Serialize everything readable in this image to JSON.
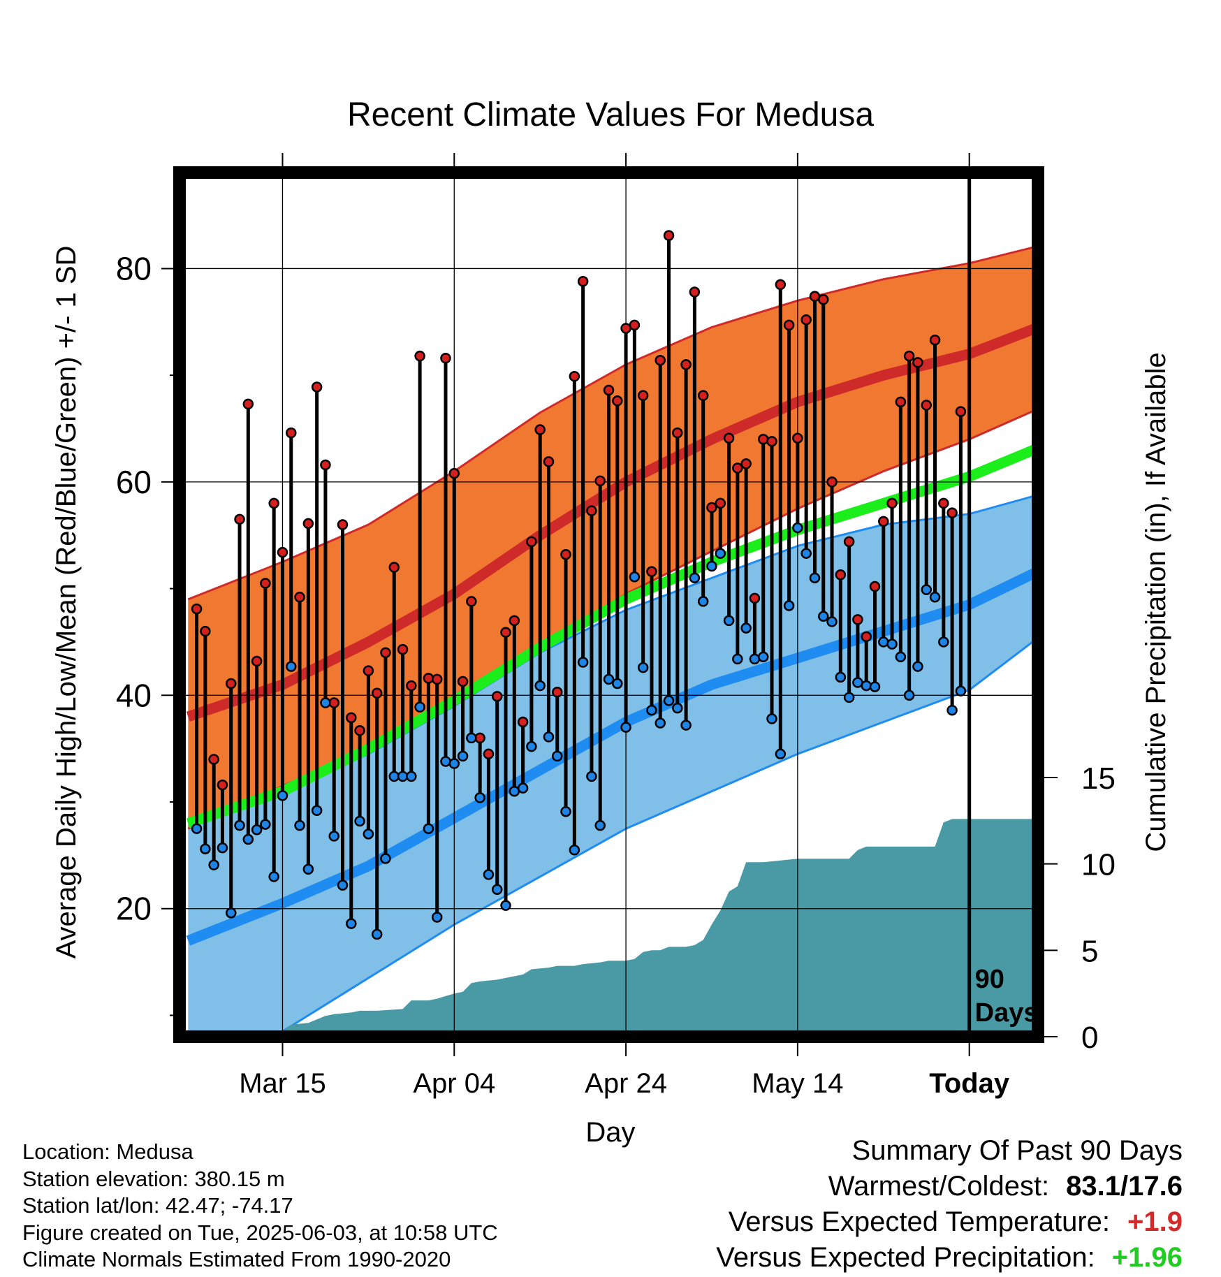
{
  "chart_data": {
    "type": "line",
    "title": "Recent Climate Values For Medusa",
    "xlabel": "Day",
    "ylabel": "Average Daily High/Low/Mean (Red/Blue/Green) +/- 1 SD",
    "y2label": "Cumulative Precipitation (in), If Available",
    "x_range_days": [
      -92,
      8
    ],
    "x_reference": "Today",
    "x_ticks": [
      {
        "day": -80,
        "label": "Mar 15"
      },
      {
        "day": -60,
        "label": "Apr 04"
      },
      {
        "day": -40,
        "label": "Apr 24"
      },
      {
        "day": -20,
        "label": "May 14"
      },
      {
        "day": 0,
        "label": "Today"
      }
    ],
    "ylim": [
      8,
      89
    ],
    "yticks": [
      20,
      40,
      60,
      80
    ],
    "y2lim": [
      0,
      58
    ],
    "y2ticks": [
      0,
      5,
      10,
      15
    ],
    "today_marker_label": "90 Days",
    "grid": true,
    "normals": {
      "days": [
        -91,
        -80,
        -70,
        -60,
        -50,
        -40,
        -30,
        -20,
        -10,
        0,
        9
      ],
      "high_mean": [
        38.0,
        41.0,
        45.0,
        49.5,
        55.0,
        60.0,
        64.0,
        67.5,
        70.0,
        72.0,
        74.8
      ],
      "high_upper": [
        49.0,
        52.5,
        56.0,
        61.0,
        66.5,
        71.0,
        74.5,
        77.0,
        79.0,
        80.5,
        82.3
      ],
      "high_lower": [
        27.5,
        31.5,
        35.0,
        39.5,
        44.5,
        49.5,
        53.5,
        57.5,
        61.0,
        64.0,
        67.2
      ],
      "mean": [
        28.0,
        31.0,
        35.0,
        39.5,
        44.5,
        49.0,
        52.5,
        55.5,
        58.0,
        60.5,
        63.5
      ],
      "low_mean": [
        17.0,
        20.5,
        24.0,
        28.5,
        33.0,
        37.5,
        41.0,
        43.5,
        46.0,
        48.5,
        52.0
      ],
      "low_upper": [
        28.5,
        31.0,
        34.5,
        39.0,
        44.0,
        48.0,
        51.0,
        54.0,
        56.0,
        57.0,
        59.0
      ],
      "low_lower": [
        5.0,
        8.5,
        13.5,
        18.5,
        23.0,
        27.5,
        31.0,
        34.5,
        37.5,
        40.5,
        46.0
      ]
    },
    "series": [
      {
        "name": "High",
        "days": [
          -90,
          -89,
          -88,
          -87,
          -86,
          -85,
          -84,
          -83,
          -82,
          -81,
          -80,
          -79,
          -78,
          -77,
          -76,
          -75,
          -74,
          -73,
          -72,
          -71,
          -70,
          -69,
          -68,
          -67,
          -66,
          -65,
          -64,
          -63,
          -62,
          -61,
          -60,
          -59,
          -58,
          -57,
          -56,
          -55,
          -54,
          -53,
          -52,
          -51,
          -50,
          -49,
          -48,
          -47,
          -46,
          -45,
          -44,
          -43,
          -42,
          -41,
          -40,
          -39,
          -38,
          -37,
          -36,
          -35,
          -34,
          -33,
          -32,
          -31,
          -30,
          -29,
          -28,
          -27,
          -26,
          -25,
          -24,
          -23,
          -22,
          -21,
          -20,
          -19,
          -18,
          -17,
          -16,
          -15,
          -14,
          -13,
          -12,
          -11,
          -10,
          -9,
          -8,
          -7,
          -6,
          -5,
          -4,
          -3,
          -2,
          -1
        ],
        "values": [
          48.1,
          46.0,
          34.0,
          31.6,
          41.1,
          56.5,
          67.3,
          43.2,
          50.5,
          58.0,
          53.4,
          64.6,
          49.2,
          56.1,
          68.9,
          61.6,
          39.3,
          56.0,
          37.9,
          36.7,
          42.3,
          40.2,
          44.0,
          52.0,
          44.3,
          40.9,
          71.8,
          41.6,
          41.5,
          71.6,
          60.8,
          41.3,
          48.8,
          36.0,
          34.5,
          39.9,
          45.9,
          47.0,
          37.5,
          54.4,
          64.9,
          61.9,
          40.3,
          53.2,
          69.9,
          78.8,
          57.3,
          60.1,
          68.6,
          67.6,
          74.4,
          74.7,
          68.1,
          51.6,
          71.4,
          83.1,
          64.6,
          71.0,
          77.8,
          68.1,
          57.6,
          58.0,
          64.1,
          61.3,
          61.7,
          49.1,
          64.0,
          63.8,
          78.5,
          74.7,
          64.1,
          75.2,
          77.4,
          77.1,
          60.0,
          51.3,
          54.4,
          47.1,
          45.5,
          50.2,
          56.3,
          58.0,
          67.5,
          71.8,
          71.2,
          67.2,
          73.3,
          58.0,
          57.1,
          66.6
        ]
      },
      {
        "name": "Low",
        "days": [
          -90,
          -89,
          -88,
          -87,
          -86,
          -85,
          -84,
          -83,
          -82,
          -81,
          -80,
          -79,
          -78,
          -77,
          -76,
          -75,
          -74,
          -73,
          -72,
          -71,
          -70,
          -69,
          -68,
          -67,
          -66,
          -65,
          -64,
          -63,
          -62,
          -61,
          -60,
          -59,
          -58,
          -57,
          -56,
          -55,
          -54,
          -53,
          -52,
          -51,
          -50,
          -49,
          -48,
          -47,
          -46,
          -45,
          -44,
          -43,
          -42,
          -41,
          -40,
          -39,
          -38,
          -37,
          -36,
          -35,
          -34,
          -33,
          -32,
          -31,
          -30,
          -29,
          -28,
          -27,
          -26,
          -25,
          -24,
          -23,
          -22,
          -21,
          -20,
          -19,
          -18,
          -17,
          -16,
          -15,
          -14,
          -13,
          -12,
          -11,
          -10,
          -9,
          -8,
          -7,
          -6,
          -5,
          -4,
          -3,
          -2,
          -1
        ],
        "values": [
          27.5,
          25.6,
          24.1,
          25.7,
          19.6,
          27.8,
          26.5,
          27.4,
          27.9,
          23.0,
          30.6,
          42.7,
          27.8,
          23.7,
          29.2,
          39.3,
          26.8,
          22.2,
          18.6,
          28.2,
          27.0,
          17.6,
          24.7,
          32.4,
          32.4,
          32.4,
          38.9,
          27.5,
          19.2,
          33.8,
          33.6,
          34.3,
          36.0,
          30.4,
          23.2,
          21.8,
          20.3,
          31.0,
          31.3,
          35.2,
          40.9,
          36.1,
          34.3,
          29.1,
          25.5,
          43.1,
          32.4,
          27.8,
          41.5,
          41.1,
          37.0,
          51.1,
          42.6,
          38.6,
          37.4,
          39.5,
          38.8,
          37.2,
          51.0,
          48.8,
          52.1,
          53.3,
          47.0,
          43.4,
          46.3,
          43.4,
          43.6,
          37.8,
          34.5,
          48.4,
          55.7,
          53.3,
          51.0,
          47.4,
          46.9,
          41.7,
          39.8,
          41.2,
          40.9,
          40.8,
          45.0,
          44.8,
          43.6,
          40.0,
          42.7,
          49.9,
          49.2,
          45.0,
          38.6,
          40.4
        ]
      },
      {
        "name": "Cumulative Precipitation",
        "days": [
          -91,
          -81,
          -80,
          -79,
          -77,
          -75,
          -74,
          -72,
          -71,
          -69,
          -66,
          -65,
          -63,
          -62,
          -60,
          -59,
          -58,
          -57,
          -55,
          -54,
          -52,
          -51,
          -49,
          -48,
          -46,
          -45,
          -43,
          -42,
          -40,
          -39,
          -38,
          -37,
          -36,
          -35,
          -33,
          -32,
          -31,
          -30,
          -29,
          -28,
          -27,
          -26,
          -25,
          -24,
          -22,
          -20,
          -19,
          -17,
          -16,
          -14,
          -13,
          -12,
          -11,
          -10,
          -8,
          -6,
          -4,
          -3,
          -2,
          -1,
          8
        ],
        "values": [
          0,
          0,
          0.3,
          0.7,
          0.8,
          1.2,
          1.3,
          1.4,
          1.5,
          1.5,
          1.6,
          2.1,
          2.1,
          2.2,
          2.5,
          2.6,
          3.1,
          3.2,
          3.3,
          3.4,
          3.6,
          3.9,
          4.0,
          4.1,
          4.1,
          4.2,
          4.3,
          4.4,
          4.4,
          4.5,
          4.9,
          5.0,
          5.0,
          5.2,
          5.2,
          5.3,
          5.6,
          6.5,
          7.3,
          8.4,
          8.7,
          10.1,
          10.1,
          10.1,
          10.2,
          10.3,
          10.3,
          10.3,
          10.3,
          10.3,
          10.8,
          11.0,
          11.0,
          11.0,
          11.0,
          11.0,
          11.0,
          12.4,
          12.6,
          12.6,
          12.6
        ]
      }
    ]
  },
  "footer_left": [
    "Location: Medusa",
    "Station elevation: 380.15 m",
    "Station lat/lon: 42.47; -74.17",
    "Figure created on Tue, 2025-06-03, at 10:58 UTC",
    "Climate Normals Estimated From 1990-2020"
  ],
  "summary": {
    "heading": "Summary Of Past 90 Days",
    "warmest_coldest_label": "Warmest/Coldest:",
    "warmest_coldest_value": "83.1/17.6",
    "temp_label": "Versus Expected Temperature:",
    "temp_value": "+1.9",
    "temp_color": "#d62a2a",
    "precip_label": "Versus Expected Precipitation:",
    "precip_value": "+1.96",
    "precip_color": "#22cc22"
  },
  "colors": {
    "high_band": "#f07830",
    "high_line": "#cf2a2a",
    "low_band": "#80c0e8",
    "low_line": "#1e8cf0",
    "mean_line": "#1cee1c",
    "precip": "#4a9aa6",
    "high_dot": "#d62020",
    "low_dot": "#1e84e6"
  }
}
